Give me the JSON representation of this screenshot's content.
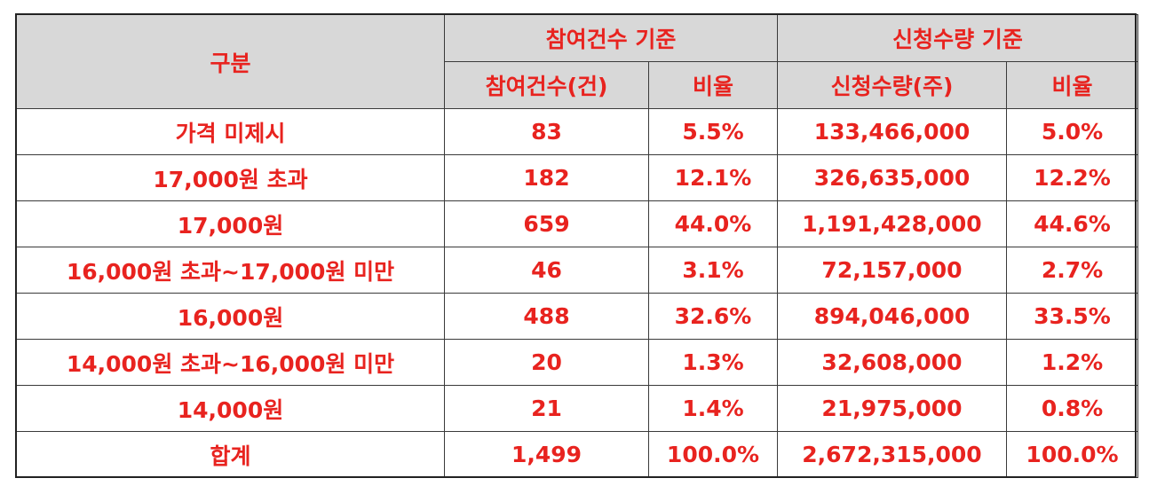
{
  "header": {
    "category": "구분",
    "group_participation": "참여건수 기준",
    "group_quantity": "신청수량 기준",
    "col_participation_count": "참여건수(건)",
    "col_participation_ratio": "비율",
    "col_quantity": "신청수량(주)",
    "col_quantity_ratio": "비율"
  },
  "rows": [
    {
      "label": "가격 미제시",
      "count": "83",
      "count_ratio": "5.5%",
      "quantity": "133,466,000",
      "quantity_ratio": "5.0%"
    },
    {
      "label": "17,000원 초과",
      "count": "182",
      "count_ratio": "12.1%",
      "quantity": "326,635,000",
      "quantity_ratio": "12.2%"
    },
    {
      "label": "17,000원",
      "count": "659",
      "count_ratio": "44.0%",
      "quantity": "1,191,428,000",
      "quantity_ratio": "44.6%"
    },
    {
      "label": "16,000원 초과~17,000원 미만",
      "count": "46",
      "count_ratio": "3.1%",
      "quantity": "72,157,000",
      "quantity_ratio": "2.7%"
    },
    {
      "label": "16,000원",
      "count": "488",
      "count_ratio": "32.6%",
      "quantity": "894,046,000",
      "quantity_ratio": "33.5%"
    },
    {
      "label": "14,000원 초과~16,000원 미만",
      "count": "20",
      "count_ratio": "1.3%",
      "quantity": "32,608,000",
      "quantity_ratio": "1.2%"
    },
    {
      "label": "14,000원",
      "count": "21",
      "count_ratio": "1.4%",
      "quantity": "21,975,000",
      "quantity_ratio": "0.8%"
    },
    {
      "label": "합계",
      "count": "1,499",
      "count_ratio": "100.0%",
      "quantity": "2,672,315,000",
      "quantity_ratio": "100.0%"
    }
  ],
  "colors": {
    "text": "#e8231f",
    "header_bg": "#d8d8d8",
    "border": "#3a3a3a"
  }
}
